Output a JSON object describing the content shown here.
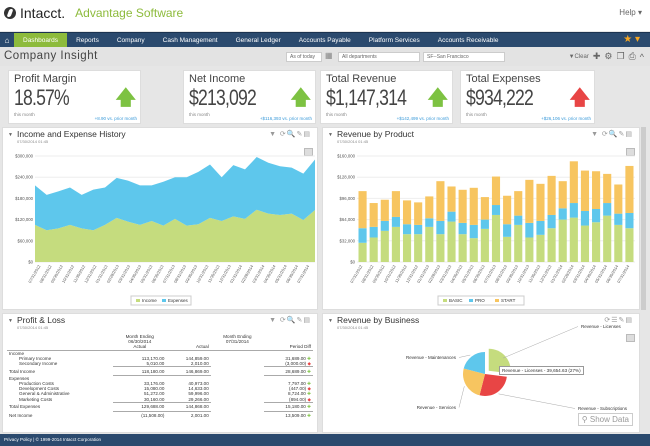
{
  "header": {
    "logo": "Intacct.",
    "company": "Advantage Software",
    "help": "Help ▾"
  },
  "nav": {
    "items": [
      "Dashboards",
      "Reports",
      "Company",
      "Cash Management",
      "General Ledger",
      "Accounts Payable",
      "Platform Services",
      "Accounts Receivable"
    ],
    "active": "Dashboards"
  },
  "titlebar": {
    "title": "Company Insight",
    "as_of": "As of today",
    "department": "All departments",
    "location": "SF--San Francisco",
    "clear": "Clear"
  },
  "kpis": [
    {
      "label": "Profit Margin",
      "value": "18.57%",
      "sub": "this month",
      "change": "+8.90 vs. prior month",
      "direction": "up",
      "color": "#7dc242"
    },
    {
      "label": "Net Income",
      "value": "$213,092",
      "sub": "this month",
      "change": "+$116,393 vs. prior month",
      "direction": "up",
      "color": "#7dc242"
    },
    {
      "label": "Total Revenue",
      "value": "$1,147,314",
      "sub": "this month",
      "change": "+$142,499 vs. prior month",
      "direction": "up",
      "color": "#7dc242"
    },
    {
      "label": "Total Expenses",
      "value": "$934,222",
      "sub": "this month",
      "change": "+$26,106 vs. prior month",
      "direction": "up",
      "color": "#e84545"
    }
  ],
  "panels": {
    "history": {
      "title": "Income and Expense History",
      "date": "07/30/2014 01:45"
    },
    "product": {
      "title": "Revenue by Product",
      "date": "07/30/2014 01:45"
    },
    "pl": {
      "title": "Profit & Loss",
      "date": "07/30/2014 01:45"
    },
    "business": {
      "title": "Revenue by Business",
      "date": "07/30/2014 01:45",
      "show_data": "Show Data",
      "tooltip": "Revenue - Licenses - 39,654.63 (27%)"
    }
  },
  "chart_data": [
    {
      "type": "area",
      "stacked": true,
      "ylim": [
        0,
        300000
      ],
      "yticks": [
        "$0",
        "$60,000",
        "$120,000",
        "$180,000",
        "$240,000",
        "$300,000"
      ],
      "grid": true,
      "legend": "bottom",
      "x": [
        "07/31/2012",
        "08/31/2012",
        "09/30/2012",
        "10/31/2012",
        "11/30/2012",
        "12/31/2012",
        "01/31/2013",
        "02/28/2013",
        "03/31/2013",
        "04/30/2013",
        "05/31/2013",
        "06/30/2013",
        "07/31/2013",
        "08/31/2013",
        "09/30/2013",
        "10/31/2013",
        "11/30/2013",
        "12/31/2013",
        "01/31/2014",
        "02/28/2014",
        "03/31/2014",
        "04/30/2014",
        "05/31/2014",
        "06/30/2014",
        "07/31/2014"
      ],
      "series": [
        {
          "name": "Income",
          "color": "#c5dc7e",
          "values": [
            105000,
            90000,
            95000,
            105000,
            95000,
            90000,
            105000,
            125000,
            114000,
            105000,
            116000,
            103000,
            122000,
            103000,
            107000,
            125000,
            116000,
            129000,
            122000,
            148000,
            137000,
            133000,
            137000,
            119000,
            147000
          ]
        },
        {
          "name": "Expenses",
          "color": "#5ec7ec",
          "values": [
            112000,
            100000,
            105000,
            106000,
            95000,
            115000,
            106000,
            113000,
            116000,
            112000,
            101000,
            124000,
            118000,
            137000,
            148000,
            151000,
            124000,
            145000,
            140000,
            149000,
            144000,
            138000,
            130000,
            131000,
            143000
          ]
        }
      ]
    },
    {
      "type": "bar",
      "stacked": true,
      "ylim": [
        0,
        160000
      ],
      "yticks": [
        "$0",
        "$32,000",
        "$64,000",
        "$96,000",
        "$128,000",
        "$160,000"
      ],
      "legend": "bottom",
      "x": [
        "07/31/2012",
        "08/31/2012",
        "09/30/2012",
        "10/31/2012",
        "11/30/2012",
        "12/31/2012",
        "01/31/2013",
        "02/28/2013",
        "03/31/2013",
        "04/30/2013",
        "05/31/2013",
        "06/30/2013",
        "07/31/2013",
        "08/31/2013",
        "09/30/2013",
        "10/31/2013",
        "11/30/2013",
        "12/31/2013",
        "01/31/2014",
        "02/28/2014",
        "03/31/2014",
        "04/30/2014",
        "05/31/2014",
        "06/30/2014",
        "07/31/2014"
      ],
      "series": [
        {
          "name": "BASIC",
          "color": "#c5dc7e",
          "values": [
            29000,
            37000,
            47000,
            53000,
            42000,
            42000,
            53000,
            42000,
            61000,
            42000,
            36000,
            50000,
            71000,
            38000,
            56000,
            37000,
            41000,
            51000,
            64000,
            67000,
            55000,
            60000,
            70000,
            56000,
            51000
          ]
        },
        {
          "name": "PRO",
          "color": "#5ec7ec",
          "values": [
            22000,
            16000,
            15000,
            15000,
            15000,
            14000,
            13000,
            20000,
            15000,
            17000,
            20000,
            14000,
            15000,
            19000,
            14000,
            22000,
            21000,
            20000,
            17000,
            22000,
            22000,
            20000,
            19000,
            17000,
            23000
          ]
        },
        {
          "name": "START",
          "color": "#f7c560",
          "values": [
            56000,
            36000,
            32000,
            39000,
            36000,
            34000,
            33000,
            60000,
            38000,
            50000,
            56000,
            34000,
            43000,
            43000,
            37000,
            65000,
            56000,
            59000,
            41000,
            63000,
            61000,
            57000,
            44000,
            44000,
            71000
          ]
        }
      ]
    },
    {
      "type": "pie",
      "series": [
        {
          "name": "Revenue - Licenses",
          "value": 27,
          "color": "#c5dc7e"
        },
        {
          "name": "Revenue - Subscriptions",
          "value": 27,
          "color": "#e84545"
        },
        {
          "name": "Revenue - Services",
          "value": 25,
          "color": "#f7c560"
        },
        {
          "name": "Revenue - Maintenances",
          "value": 21,
          "color": "#5ec7ec"
        }
      ]
    }
  ],
  "pl_table": {
    "headers": [
      [
        "Month Ending",
        "06/30/2014",
        "Actual"
      ],
      [
        "Month Ending",
        "07/31/2014",
        "Actual"
      ],
      [
        "",
        "",
        "Period Diff"
      ]
    ],
    "rows": [
      {
        "label": "Income",
        "cells": [
          "",
          "",
          ""
        ],
        "type": "group"
      },
      {
        "label": "Primary Income",
        "cells": [
          "113,170.00",
          "144,859.00",
          "31,689.00"
        ],
        "type": "item",
        "trend": "up"
      },
      {
        "label": "Secondary Income",
        "cells": [
          "5,010.00",
          "2,010.00",
          "(3,000.00)"
        ],
        "type": "item",
        "trend": "down",
        "bt": true
      },
      {
        "label": "Total Income",
        "cells": [
          "118,180.00",
          "146,869.00",
          "28,689.00"
        ],
        "type": "total",
        "trend": "up",
        "bt": true
      },
      {
        "label": "Expenses",
        "cells": [
          "",
          "",
          ""
        ],
        "type": "group"
      },
      {
        "label": "Production Costs",
        "cells": [
          "33,176.00",
          "40,973.00",
          "7,797.00"
        ],
        "type": "item",
        "trend": "up"
      },
      {
        "label": "Development Costs",
        "cells": [
          "15,080.00",
          "14,633.00",
          "(447.00)"
        ],
        "type": "item",
        "trend": "down"
      },
      {
        "label": "General & Administrative",
        "cells": [
          "51,272.00",
          "59,996.00",
          "8,724.00"
        ],
        "type": "item",
        "trend": "up"
      },
      {
        "label": "Marketing Costs",
        "cells": [
          "30,160.00",
          "29,266.00",
          "(894.00)"
        ],
        "type": "item",
        "trend": "down",
        "bt": true
      },
      {
        "label": "Total Expenses",
        "cells": [
          "129,688.00",
          "144,868.00",
          "15,180.00"
        ],
        "type": "total",
        "trend": "up",
        "bt": true
      },
      {
        "label": "Net Income",
        "cells": [
          "(11,508.00)",
          "2,001.00",
          "13,509.00"
        ],
        "type": "total",
        "trend": "up"
      }
    ]
  },
  "footer": "Privacy Policy | © 1999-2014  Intacct Corporation"
}
